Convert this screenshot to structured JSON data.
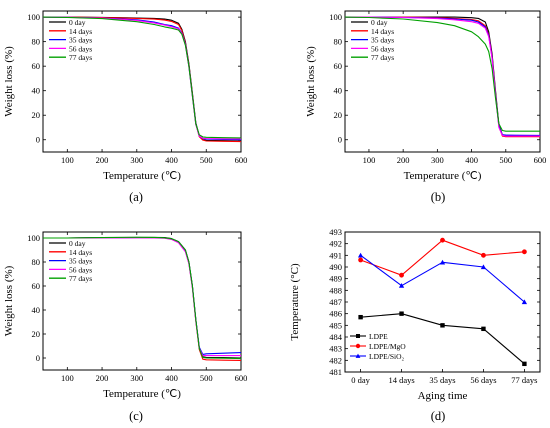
{
  "chart_data": [
    {
      "type": "line",
      "panel_label": "(a)",
      "xlabel": "Temperature (℃)",
      "ylabel": "Weight loss (%)",
      "xlim": [
        30,
        600
      ],
      "ylim": [
        -10,
        105
      ],
      "xticks": [
        100,
        200,
        300,
        400,
        500,
        600
      ],
      "yticks": [
        0,
        20,
        40,
        60,
        80,
        100
      ],
      "legend_position": "top-left",
      "series": [
        {
          "name": "0 day",
          "color": "#000000",
          "x": [
            30,
            100,
            200,
            300,
            350,
            380,
            400,
            420,
            430,
            440,
            450,
            460,
            470,
            480,
            490,
            500,
            550,
            600
          ],
          "y": [
            100,
            100,
            99.8,
            99.3,
            99,
            98.4,
            97.5,
            95,
            90,
            80,
            62,
            38,
            14,
            3,
            0,
            -0.5,
            -0.8,
            -1
          ]
        },
        {
          "name": "14 days",
          "color": "#ff0000",
          "x": [
            30,
            100,
            200,
            300,
            350,
            380,
            400,
            420,
            430,
            440,
            450,
            460,
            470,
            480,
            490,
            500,
            550,
            600
          ],
          "y": [
            100,
            100,
            99.7,
            99,
            98.4,
            97.6,
            96.5,
            94,
            89,
            79,
            61,
            37,
            13,
            2.5,
            -0.3,
            -1,
            -1.3,
            -1.5
          ]
        },
        {
          "name": "35 days",
          "color": "#0000ff",
          "x": [
            30,
            100,
            200,
            300,
            350,
            380,
            400,
            420,
            430,
            440,
            450,
            460,
            470,
            480,
            490,
            500,
            550,
            600
          ],
          "y": [
            100,
            99.9,
            99.3,
            97.8,
            96,
            94,
            93,
            91,
            87,
            78,
            60,
            36,
            13,
            3,
            1,
            0.5,
            0.2,
            0
          ]
        },
        {
          "name": "56 days",
          "color": "#ff00ff",
          "x": [
            30,
            100,
            200,
            300,
            350,
            380,
            400,
            420,
            430,
            440,
            450,
            460,
            470,
            480,
            490,
            500,
            550,
            600
          ],
          "y": [
            100,
            99.9,
            99.2,
            97.3,
            95.3,
            93.5,
            92.3,
            90.5,
            86.5,
            77.5,
            59.5,
            35.5,
            12.5,
            3,
            1.2,
            1,
            0.8,
            0.6
          ]
        },
        {
          "name": "77 days",
          "color": "#00a000",
          "x": [
            30,
            100,
            200,
            300,
            350,
            380,
            400,
            420,
            430,
            440,
            450,
            460,
            470,
            480,
            490,
            500,
            550,
            600
          ],
          "y": [
            100,
            99.8,
            98.8,
            96.3,
            94,
            92,
            91,
            89.5,
            86,
            77,
            60,
            36,
            13,
            4,
            2.3,
            2,
            1.7,
            1.5
          ]
        }
      ]
    },
    {
      "type": "line",
      "panel_label": "(b)",
      "xlabel": "Temperature (℃)",
      "ylabel": "Weight loss (%)",
      "xlim": [
        30,
        600
      ],
      "ylim": [
        -10,
        105
      ],
      "xticks": [
        100,
        200,
        300,
        400,
        500,
        600
      ],
      "yticks": [
        0,
        20,
        40,
        60,
        80,
        100
      ],
      "legend_position": "top-left",
      "series": [
        {
          "name": "0 day",
          "color": "#000000",
          "x": [
            30,
            100,
            200,
            300,
            350,
            400,
            420,
            440,
            450,
            460,
            470,
            480,
            490,
            500,
            550,
            600
          ],
          "y": [
            100,
            100,
            100,
            100,
            100,
            99.5,
            99,
            96,
            88,
            70,
            40,
            12,
            4,
            3.5,
            3.3,
            3
          ]
        },
        {
          "name": "14 days",
          "color": "#ff0000",
          "x": [
            30,
            100,
            200,
            300,
            350,
            400,
            420,
            440,
            450,
            460,
            470,
            480,
            490,
            500,
            550,
            600
          ],
          "y": [
            100,
            100,
            100,
            99.6,
            99,
            98,
            97,
            93,
            86,
            68,
            38,
            11,
            3,
            2.5,
            2.5,
            2.5
          ]
        },
        {
          "name": "35 days",
          "color": "#0000ff",
          "x": [
            30,
            100,
            200,
            300,
            350,
            400,
            420,
            440,
            450,
            460,
            470,
            480,
            490,
            500,
            550,
            600
          ],
          "y": [
            100,
            100,
            99.8,
            99.2,
            98.5,
            97.5,
            96,
            92,
            85,
            67,
            37,
            11,
            4,
            3.8,
            3.6,
            3.5
          ]
        },
        {
          "name": "56 days",
          "color": "#ff00ff",
          "x": [
            30,
            100,
            200,
            300,
            350,
            400,
            420,
            440,
            450,
            460,
            470,
            480,
            490,
            500,
            550,
            600
          ],
          "y": [
            100,
            100,
            99.7,
            98.8,
            97.8,
            96.3,
            95,
            91,
            84,
            66,
            36,
            10,
            3.5,
            3,
            3,
            3
          ]
        },
        {
          "name": "77 days",
          "color": "#00a000",
          "x": [
            30,
            100,
            200,
            300,
            350,
            400,
            420,
            440,
            450,
            460,
            470,
            480,
            490,
            500,
            550,
            600
          ],
          "y": [
            100,
            99.7,
            98.5,
            95.5,
            93,
            88,
            84,
            78,
            72,
            58,
            34,
            13,
            7.5,
            7,
            7,
            7
          ]
        }
      ]
    },
    {
      "type": "line",
      "panel_label": "(c)",
      "xlabel": "Temperature (℃)",
      "ylabel": "Weight loss (%)",
      "xlim": [
        30,
        600
      ],
      "ylim": [
        -10,
        105
      ],
      "xticks": [
        100,
        200,
        300,
        400,
        500,
        600
      ],
      "yticks": [
        0,
        20,
        40,
        60,
        80,
        100
      ],
      "legend_position": "top-left",
      "series": [
        {
          "name": "0 day",
          "color": "#000000",
          "x": [
            30,
            100,
            200,
            300,
            350,
            380,
            400,
            420,
            440,
            450,
            460,
            470,
            480,
            490,
            500,
            550,
            600
          ],
          "y": [
            100,
            100,
            100.3,
            100.5,
            100.5,
            100.3,
            99.5,
            97,
            90,
            80,
            60,
            32,
            8,
            1,
            0.5,
            0.3,
            0
          ]
        },
        {
          "name": "14 days",
          "color": "#ff0000",
          "x": [
            30,
            100,
            200,
            300,
            350,
            380,
            400,
            420,
            440,
            450,
            460,
            470,
            480,
            490,
            500,
            550,
            600
          ],
          "y": [
            100,
            100,
            100.2,
            100.3,
            100.2,
            100,
            99,
            96.5,
            89,
            79,
            59,
            31,
            7,
            -1,
            -1.5,
            -1.8,
            -2
          ]
        },
        {
          "name": "35 days",
          "color": "#0000ff",
          "x": [
            30,
            100,
            200,
            300,
            350,
            380,
            400,
            420,
            440,
            450,
            460,
            470,
            480,
            490,
            500,
            550,
            600
          ],
          "y": [
            100,
            100,
            100.2,
            100.3,
            100.3,
            100,
            99.2,
            96.8,
            89.5,
            79.5,
            59.5,
            32,
            9,
            3,
            3.5,
            4,
            4.5
          ]
        },
        {
          "name": "56 days",
          "color": "#ff00ff",
          "x": [
            30,
            100,
            200,
            300,
            350,
            380,
            400,
            420,
            440,
            450,
            460,
            470,
            480,
            490,
            500,
            550,
            600
          ],
          "y": [
            100,
            100,
            100.1,
            100.2,
            100.1,
            99.8,
            98.8,
            96,
            88.5,
            78.5,
            58.5,
            31,
            8,
            2,
            2,
            2,
            2
          ]
        },
        {
          "name": "77 days",
          "color": "#00a000",
          "x": [
            30,
            100,
            200,
            300,
            350,
            380,
            400,
            420,
            440,
            450,
            460,
            470,
            480,
            490,
            500,
            550,
            600
          ],
          "y": [
            100,
            100,
            100.3,
            100.6,
            100.5,
            100.2,
            99.4,
            97,
            90,
            80,
            60,
            32,
            8,
            0.5,
            0,
            -0.2,
            -0.5
          ]
        }
      ]
    },
    {
      "type": "line",
      "panel_label": "(d)",
      "xlabel": "Aging time",
      "ylabel": "Temperature (°C)",
      "categories": [
        "0 day",
        "14 days",
        "35 days",
        "56 days",
        "77 days"
      ],
      "ylim": [
        481,
        493
      ],
      "yticks": [
        481,
        482,
        483,
        484,
        485,
        486,
        487,
        488,
        489,
        490,
        491,
        492,
        493
      ],
      "legend_position": "bottom-left",
      "series": [
        {
          "name": "LDPE",
          "color": "#000000",
          "marker": "square",
          "values": [
            485.7,
            486.0,
            485.0,
            484.7,
            481.7
          ]
        },
        {
          "name": "LDPE/MgO",
          "color": "#ff0000",
          "marker": "circle",
          "values": [
            490.6,
            489.3,
            492.3,
            491.0,
            491.3
          ]
        },
        {
          "name": "LDPE/SiO₂",
          "color": "#0000ff",
          "marker": "triangle",
          "values": [
            491.0,
            488.4,
            490.4,
            490.0,
            487.0
          ]
        }
      ]
    }
  ]
}
